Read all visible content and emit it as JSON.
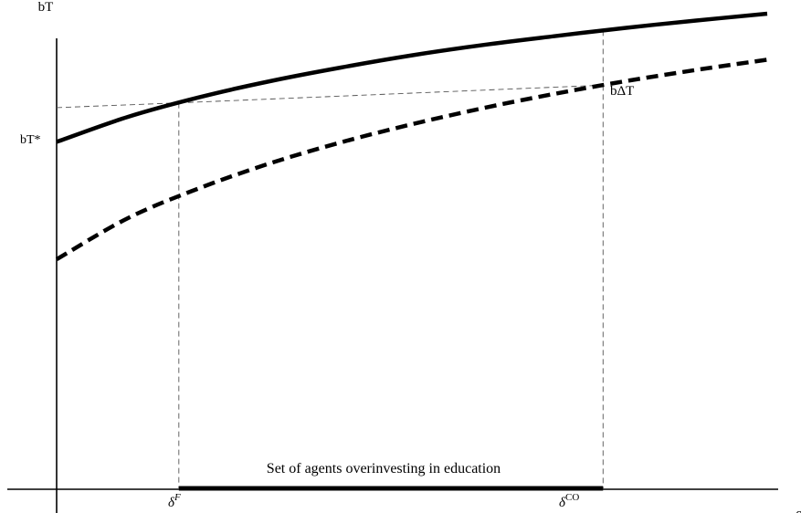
{
  "chart_data": {
    "type": "line",
    "title": "",
    "xlabel": "δ",
    "ylabel": "bT",
    "grid": false,
    "legend": "none",
    "xlim": [
      0,
      1
    ],
    "ylim": [
      0,
      1
    ],
    "series": [
      {
        "style": "solid",
        "x": [
          0,
          0.1,
          0.2,
          0.3,
          0.4,
          0.5,
          0.6,
          0.7,
          0.8,
          0.9,
          1.0
        ],
        "y": [
          0.71,
          0.761,
          0.801,
          0.834,
          0.862,
          0.887,
          0.908,
          0.926,
          0.943,
          0.958,
          0.972
        ]
      },
      {
        "style": "dashed",
        "x": [
          0,
          0.1,
          0.2,
          0.3,
          0.4,
          0.5,
          0.6,
          0.7,
          0.8,
          0.9,
          1.0
        ],
        "y": [
          0.47,
          0.554,
          0.615,
          0.666,
          0.709,
          0.746,
          0.779,
          0.808,
          0.834,
          0.857,
          0.878
        ]
      }
    ],
    "markers": {
      "delta_F": {
        "x": 0.172,
        "label": "δ",
        "sup": "F"
      },
      "delta_CO": {
        "x": 0.769,
        "label": "δ",
        "sup": "CO"
      },
      "bT_star": {
        "y": 0.78,
        "label": "bT*"
      }
    },
    "annotations": {
      "gap_label": "bΔT",
      "interval_label": "Set of agents overinvesting in education"
    }
  }
}
